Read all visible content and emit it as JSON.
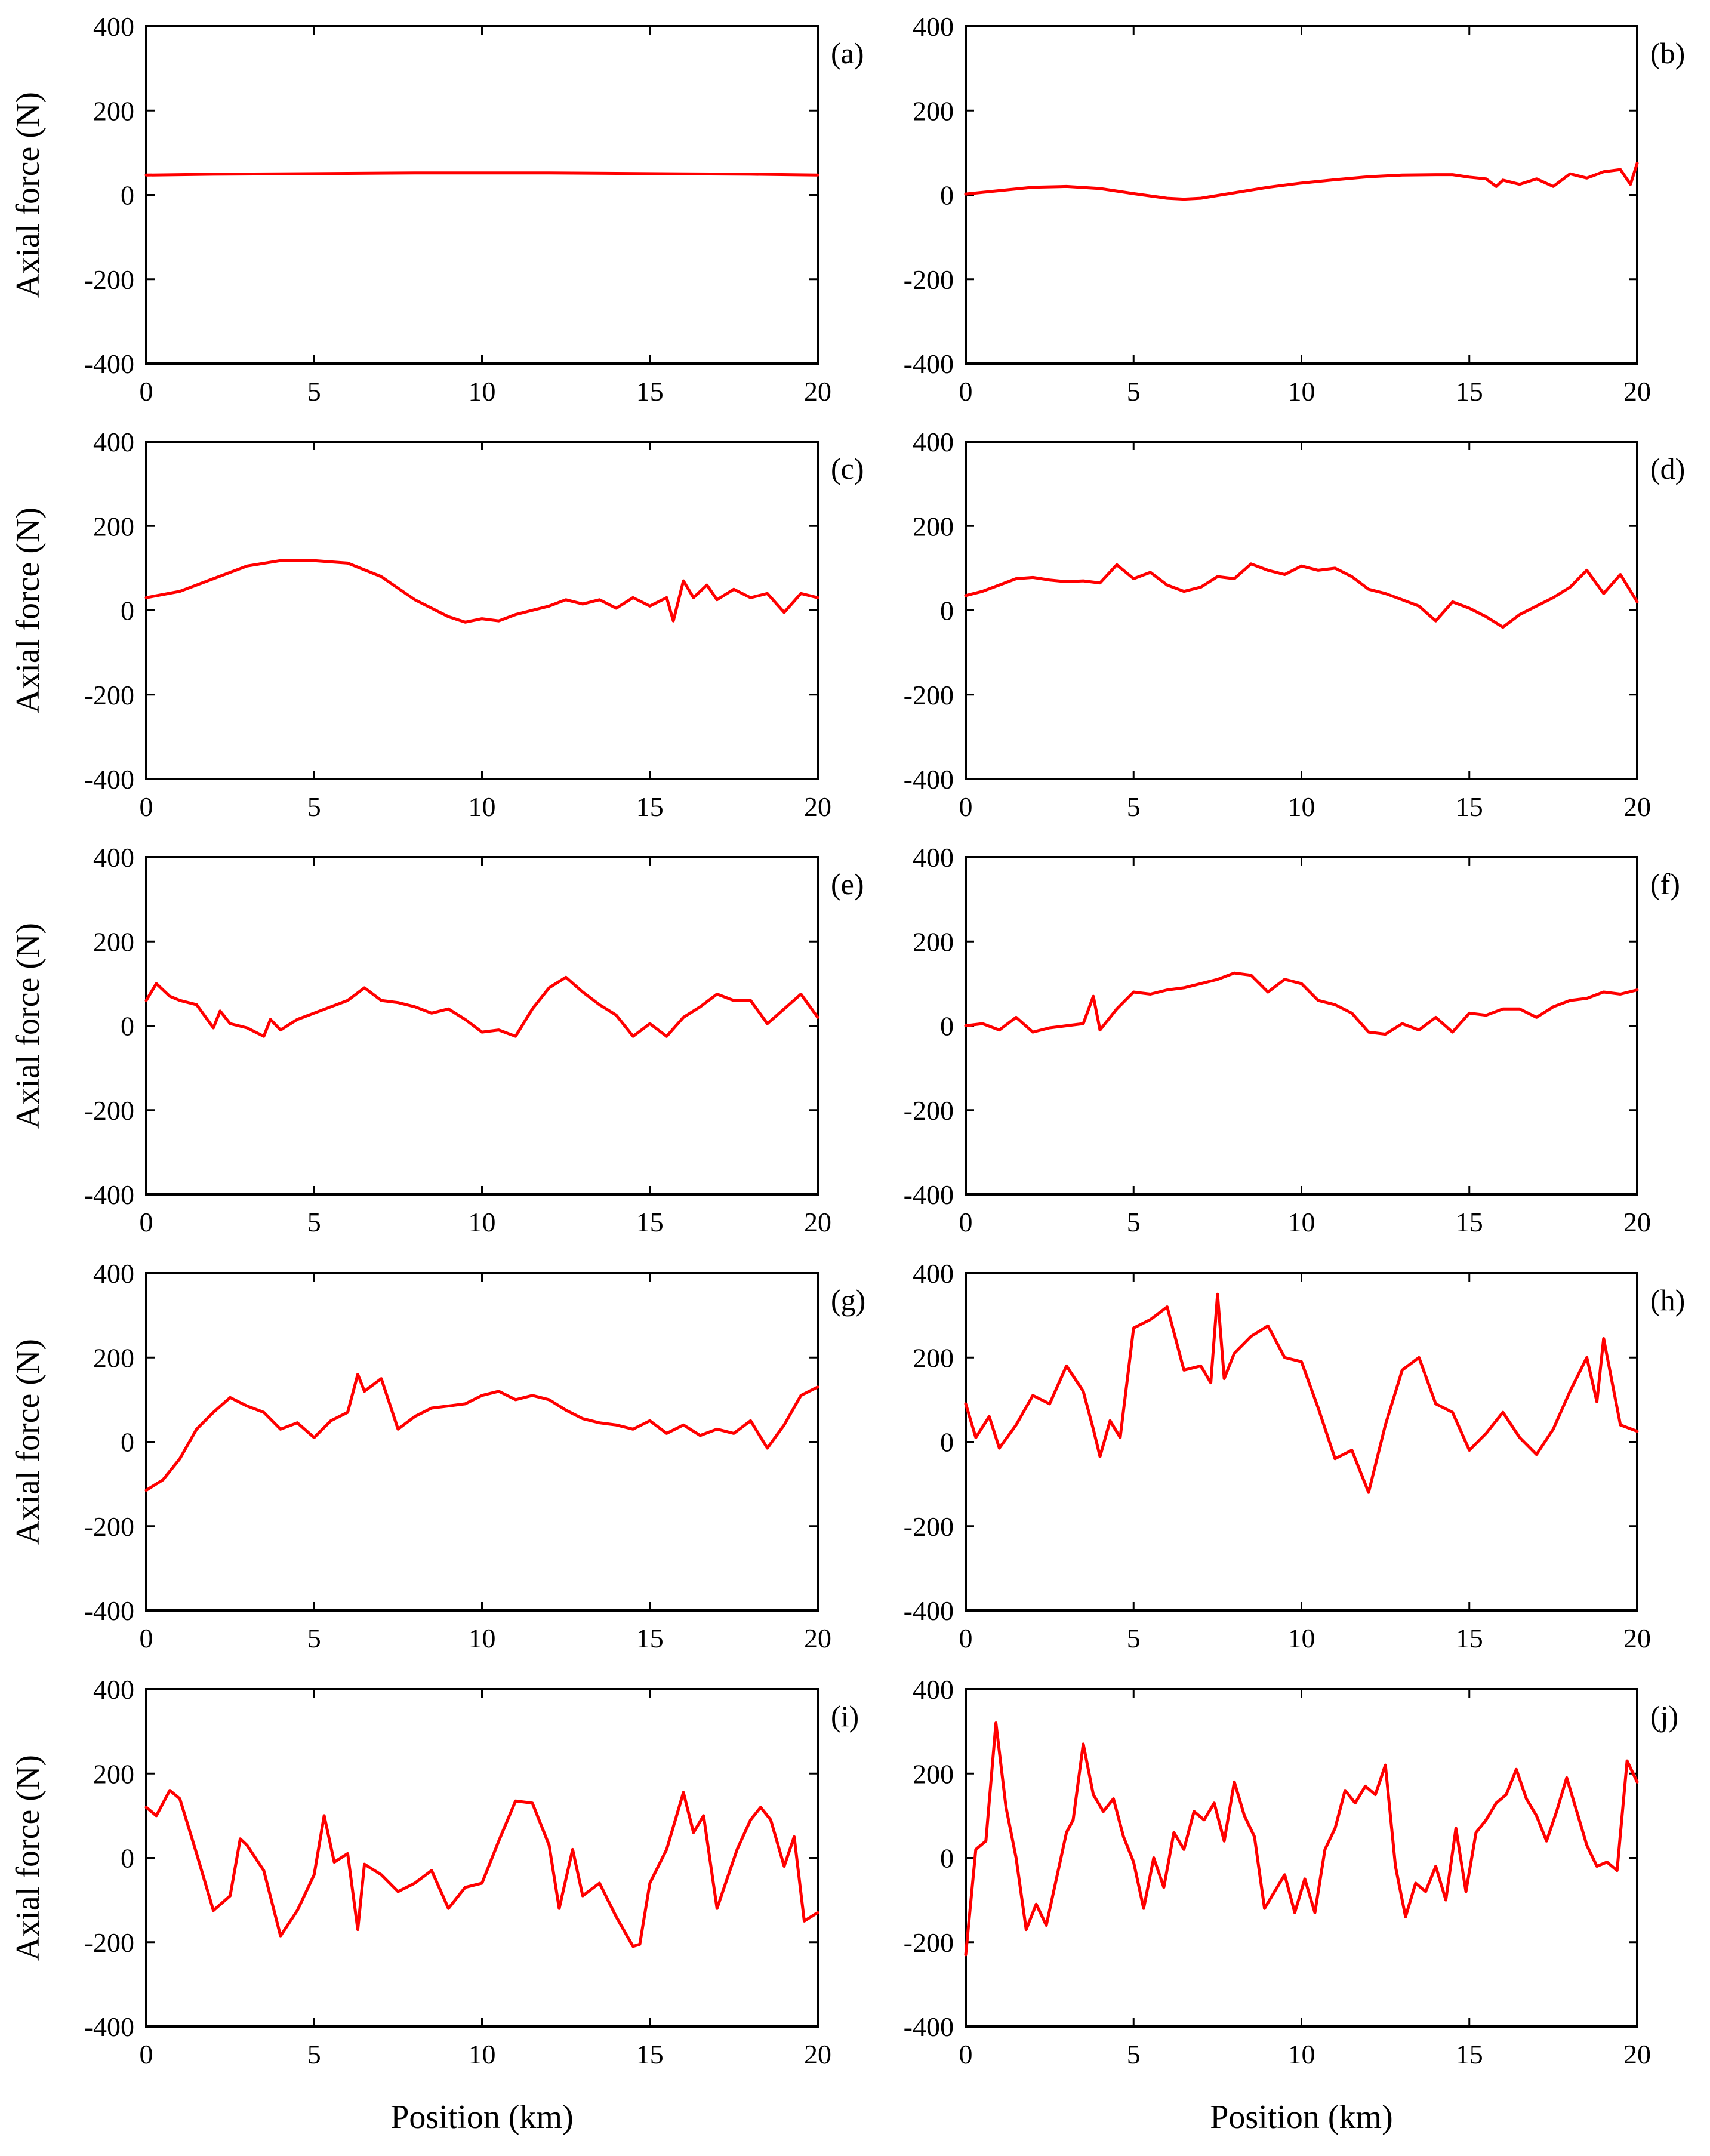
{
  "style": {
    "line_color": "#ff0000",
    "axis_color": "#000000",
    "background": "#ffffff"
  },
  "chart_data": [
    {
      "type": "line",
      "panel": "(a)",
      "xlabel": "",
      "ylabel": "Axial force (N)",
      "xlim": [
        0,
        20
      ],
      "ylim": [
        -400,
        400
      ],
      "xticks": [
        0,
        5,
        10,
        15,
        20
      ],
      "yticks": [
        -400,
        -200,
        0,
        200,
        400
      ],
      "grid": false,
      "legend": "none",
      "x": [
        0,
        2,
        4,
        6,
        8,
        10,
        12,
        14,
        16,
        18,
        20
      ],
      "y": [
        47,
        49,
        50,
        51,
        52,
        52,
        52,
        51,
        50,
        49,
        47
      ]
    },
    {
      "type": "line",
      "panel": "(b)",
      "xlabel": "",
      "ylabel": "",
      "xlim": [
        0,
        20
      ],
      "ylim": [
        -400,
        400
      ],
      "xticks": [
        0,
        5,
        10,
        15,
        20
      ],
      "yticks": [
        -400,
        -200,
        0,
        200,
        400
      ],
      "grid": false,
      "legend": "none",
      "x": [
        0,
        1,
        2,
        3,
        4,
        5,
        6,
        6.5,
        7,
        8,
        9,
        10,
        11,
        12,
        13,
        14,
        14.5,
        15,
        15.5,
        15.8,
        16,
        16.5,
        17,
        17.5,
        18,
        18.5,
        19,
        19.5,
        19.8,
        20
      ],
      "y": [
        2,
        10,
        18,
        20,
        15,
        3,
        -8,
        -10,
        -8,
        5,
        18,
        28,
        36,
        43,
        47,
        48,
        48,
        42,
        38,
        20,
        35,
        25,
        38,
        20,
        50,
        40,
        55,
        60,
        25,
        75
      ]
    },
    {
      "type": "line",
      "panel": "(c)",
      "xlabel": "",
      "ylabel": "Axial force (N)",
      "xlim": [
        0,
        20
      ],
      "ylim": [
        -400,
        400
      ],
      "xticks": [
        0,
        5,
        10,
        15,
        20
      ],
      "yticks": [
        -400,
        -200,
        0,
        200,
        400
      ],
      "grid": false,
      "legend": "none",
      "x": [
        0,
        1,
        2,
        3,
        4,
        5,
        6,
        7,
        8,
        9,
        9.5,
        10,
        10.5,
        11,
        12,
        12.5,
        13,
        13.5,
        14,
        14.5,
        15,
        15.5,
        15.7,
        16,
        16.3,
        16.7,
        17,
        17.5,
        18,
        18.5,
        19,
        19.5,
        20
      ],
      "y": [
        30,
        45,
        75,
        105,
        118,
        118,
        112,
        80,
        25,
        -15,
        -28,
        -20,
        -25,
        -10,
        10,
        25,
        15,
        25,
        5,
        30,
        10,
        30,
        -25,
        70,
        30,
        60,
        25,
        50,
        30,
        40,
        -5,
        40,
        30
      ]
    },
    {
      "type": "line",
      "panel": "(d)",
      "xlabel": "",
      "ylabel": "",
      "xlim": [
        0,
        20
      ],
      "ylim": [
        -400,
        400
      ],
      "xticks": [
        0,
        5,
        10,
        15,
        20
      ],
      "yticks": [
        -400,
        -200,
        0,
        200,
        400
      ],
      "grid": false,
      "legend": "none",
      "x": [
        0,
        0.5,
        1,
        1.5,
        2,
        2.5,
        3,
        3.5,
        4,
        4.5,
        5,
        5.5,
        6,
        6.5,
        7,
        7.5,
        8,
        8.5,
        9,
        9.5,
        10,
        10.5,
        11,
        11.5,
        12,
        12.5,
        13,
        13.5,
        14,
        14.5,
        15,
        15.5,
        16,
        16.5,
        17,
        17.5,
        18,
        18.5,
        19,
        19.5,
        20
      ],
      "y": [
        35,
        45,
        60,
        75,
        78,
        72,
        68,
        70,
        65,
        108,
        75,
        90,
        60,
        45,
        55,
        80,
        75,
        110,
        95,
        85,
        105,
        95,
        100,
        80,
        50,
        40,
        25,
        10,
        -25,
        20,
        5,
        -15,
        -40,
        -10,
        10,
        30,
        55,
        95,
        40,
        85,
        20
      ]
    },
    {
      "type": "line",
      "panel": "(e)",
      "xlabel": "",
      "ylabel": "Axial force (N)",
      "xlim": [
        0,
        20
      ],
      "ylim": [
        -400,
        400
      ],
      "xticks": [
        0,
        5,
        10,
        15,
        20
      ],
      "yticks": [
        -400,
        -200,
        0,
        200,
        400
      ],
      "grid": false,
      "legend": "none",
      "x": [
        0,
        0.3,
        0.7,
        1,
        1.5,
        2,
        2.2,
        2.5,
        3,
        3.5,
        3.7,
        4,
        4.5,
        5,
        5.5,
        6,
        6.5,
        7,
        7.5,
        8,
        8.5,
        9,
        9.5,
        10,
        10.5,
        11,
        11.5,
        12,
        12.5,
        13,
        13.5,
        14,
        14.5,
        15,
        15.5,
        16,
        16.5,
        17,
        17.5,
        18,
        18.5,
        19,
        19.5,
        20
      ],
      "y": [
        60,
        100,
        70,
        60,
        50,
        -5,
        35,
        5,
        -5,
        -25,
        15,
        -10,
        15,
        30,
        45,
        60,
        90,
        60,
        55,
        45,
        30,
        40,
        15,
        -15,
        -10,
        -25,
        40,
        90,
        115,
        80,
        50,
        25,
        -25,
        5,
        -25,
        20,
        45,
        75,
        60,
        60,
        5,
        40,
        75,
        20
      ]
    },
    {
      "type": "line",
      "panel": "(f)",
      "xlabel": "",
      "ylabel": "",
      "xlim": [
        0,
        20
      ],
      "ylim": [
        -400,
        400
      ],
      "xticks": [
        0,
        5,
        10,
        15,
        20
      ],
      "yticks": [
        -400,
        -200,
        0,
        200,
        400
      ],
      "grid": false,
      "legend": "none",
      "x": [
        0,
        0.5,
        1,
        1.5,
        2,
        2.5,
        3,
        3.5,
        3.8,
        4,
        4.5,
        5,
        5.5,
        6,
        6.5,
        7,
        7.5,
        8,
        8.5,
        9,
        9.5,
        10,
        10.5,
        11,
        11.5,
        12,
        12.5,
        13,
        13.5,
        14,
        14.5,
        15,
        15.5,
        16,
        16.5,
        17,
        17.5,
        18,
        18.5,
        19,
        19.5,
        20
      ],
      "y": [
        0,
        5,
        -10,
        20,
        -15,
        -5,
        0,
        5,
        70,
        -10,
        40,
        80,
        75,
        85,
        90,
        100,
        110,
        125,
        120,
        80,
        110,
        100,
        60,
        50,
        30,
        -15,
        -20,
        5,
        -10,
        20,
        -15,
        30,
        25,
        40,
        40,
        20,
        45,
        60,
        65,
        80,
        75,
        85
      ]
    },
    {
      "type": "line",
      "panel": "(g)",
      "xlabel": "",
      "ylabel": "Axial force (N)",
      "xlim": [
        0,
        20
      ],
      "ylim": [
        -400,
        400
      ],
      "xticks": [
        0,
        5,
        10,
        15,
        20
      ],
      "yticks": [
        -400,
        -200,
        0,
        200,
        400
      ],
      "grid": false,
      "legend": "none",
      "x": [
        0,
        0.5,
        1,
        1.5,
        2,
        2.5,
        3,
        3.5,
        4,
        4.5,
        5,
        5.5,
        6,
        6.3,
        6.5,
        7,
        7.5,
        8,
        8.5,
        9,
        9.5,
        10,
        10.5,
        11,
        11.5,
        12,
        12.5,
        13,
        13.5,
        14,
        14.5,
        15,
        15.5,
        16,
        16.5,
        17,
        17.5,
        18,
        18.5,
        19,
        19.5,
        20
      ],
      "y": [
        -115,
        -90,
        -40,
        30,
        70,
        105,
        85,
        70,
        30,
        45,
        10,
        50,
        70,
        160,
        120,
        150,
        30,
        60,
        80,
        85,
        90,
        110,
        120,
        100,
        110,
        100,
        75,
        55,
        45,
        40,
        30,
        50,
        20,
        40,
        15,
        30,
        20,
        50,
        -15,
        40,
        110,
        130
      ]
    },
    {
      "type": "line",
      "panel": "(h)",
      "xlabel": "",
      "ylabel": "",
      "xlim": [
        0,
        20
      ],
      "ylim": [
        -400,
        400
      ],
      "xticks": [
        0,
        5,
        10,
        15,
        20
      ],
      "yticks": [
        -400,
        -200,
        0,
        200,
        400
      ],
      "grid": false,
      "legend": "none",
      "x": [
        0,
        0.3,
        0.7,
        1,
        1.5,
        2,
        2.5,
        3,
        3.5,
        3.8,
        4,
        4.3,
        4.6,
        5,
        5.5,
        6,
        6.5,
        7,
        7.3,
        7.5,
        7.7,
        8,
        8.5,
        9,
        9.5,
        10,
        10.5,
        11,
        11.5,
        12,
        12.5,
        13,
        13.5,
        14,
        14.5,
        15,
        15.5,
        16,
        16.5,
        17,
        17.5,
        18,
        18.5,
        18.8,
        19,
        19.5,
        20
      ],
      "y": [
        90,
        10,
        60,
        -15,
        40,
        110,
        90,
        180,
        120,
        30,
        -35,
        50,
        10,
        270,
        290,
        320,
        170,
        180,
        140,
        350,
        150,
        210,
        250,
        275,
        200,
        190,
        80,
        -40,
        -20,
        -120,
        40,
        170,
        200,
        90,
        70,
        -20,
        20,
        70,
        10,
        -30,
        30,
        120,
        200,
        95,
        245,
        40,
        25
      ]
    },
    {
      "type": "line",
      "panel": "(i)",
      "xlabel": "Position (km)",
      "ylabel": "Axial force (N)",
      "xlim": [
        0,
        20
      ],
      "ylim": [
        -400,
        400
      ],
      "xticks": [
        0,
        5,
        10,
        15,
        20
      ],
      "yticks": [
        -400,
        -200,
        0,
        200,
        400
      ],
      "grid": false,
      "legend": "none",
      "x": [
        0,
        0.3,
        0.7,
        1,
        1.5,
        2,
        2.5,
        2.8,
        3,
        3.5,
        4,
        4.5,
        5,
        5.3,
        5.6,
        6,
        6.3,
        6.5,
        7,
        7.5,
        8,
        8.5,
        9,
        9.5,
        10,
        10.5,
        11,
        11.5,
        12,
        12.3,
        12.7,
        13,
        13.5,
        14,
        14.5,
        14.7,
        15,
        15.5,
        16,
        16.3,
        16.6,
        17,
        17.3,
        17.6,
        18,
        18.3,
        18.6,
        19,
        19.3,
        19.6,
        20
      ],
      "y": [
        120,
        100,
        160,
        140,
        10,
        -125,
        -90,
        45,
        30,
        -30,
        -185,
        -125,
        -40,
        100,
        -10,
        10,
        -170,
        -15,
        -40,
        -80,
        -60,
        -30,
        -120,
        -70,
        -60,
        40,
        135,
        130,
        30,
        -120,
        20,
        -90,
        -60,
        -140,
        -210,
        -205,
        -60,
        20,
        155,
        60,
        100,
        -120,
        -50,
        20,
        90,
        120,
        90,
        -20,
        50,
        -150,
        -130
      ]
    },
    {
      "type": "line",
      "panel": "(j)",
      "xlabel": "Position (km)",
      "ylabel": "",
      "xlim": [
        0,
        20
      ],
      "ylim": [
        -400,
        400
      ],
      "xticks": [
        0,
        5,
        10,
        15,
        20
      ],
      "yticks": [
        -400,
        -200,
        0,
        200,
        400
      ],
      "grid": false,
      "legend": "none",
      "x": [
        0,
        0.3,
        0.6,
        0.9,
        1.2,
        1.5,
        1.8,
        2.1,
        2.4,
        2.7,
        3,
        3.2,
        3.5,
        3.8,
        4.1,
        4.4,
        4.7,
        5,
        5.3,
        5.6,
        5.9,
        6.2,
        6.5,
        6.8,
        7.1,
        7.4,
        7.7,
        8,
        8.3,
        8.6,
        8.9,
        9.2,
        9.5,
        9.8,
        10.1,
        10.4,
        10.7,
        11,
        11.3,
        11.6,
        11.9,
        12.2,
        12.5,
        12.8,
        13.1,
        13.4,
        13.7,
        14,
        14.3,
        14.6,
        14.9,
        15.2,
        15.5,
        15.8,
        16.1,
        16.4,
        16.7,
        17,
        17.3,
        17.6,
        17.9,
        18.2,
        18.5,
        18.8,
        19.1,
        19.4,
        19.7,
        20
      ],
      "y": [
        -230,
        20,
        40,
        320,
        120,
        0,
        -170,
        -110,
        -160,
        -50,
        60,
        90,
        270,
        150,
        110,
        140,
        50,
        -10,
        -120,
        0,
        -70,
        60,
        20,
        110,
        90,
        130,
        40,
        180,
        100,
        50,
        -120,
        -80,
        -40,
        -130,
        -50,
        -130,
        20,
        70,
        160,
        130,
        170,
        150,
        220,
        -20,
        -140,
        -60,
        -80,
        -20,
        -100,
        70,
        -80,
        60,
        90,
        130,
        150,
        210,
        140,
        100,
        40,
        110,
        190,
        110,
        30,
        -20,
        -10,
        -30,
        230,
        180
      ]
    }
  ]
}
